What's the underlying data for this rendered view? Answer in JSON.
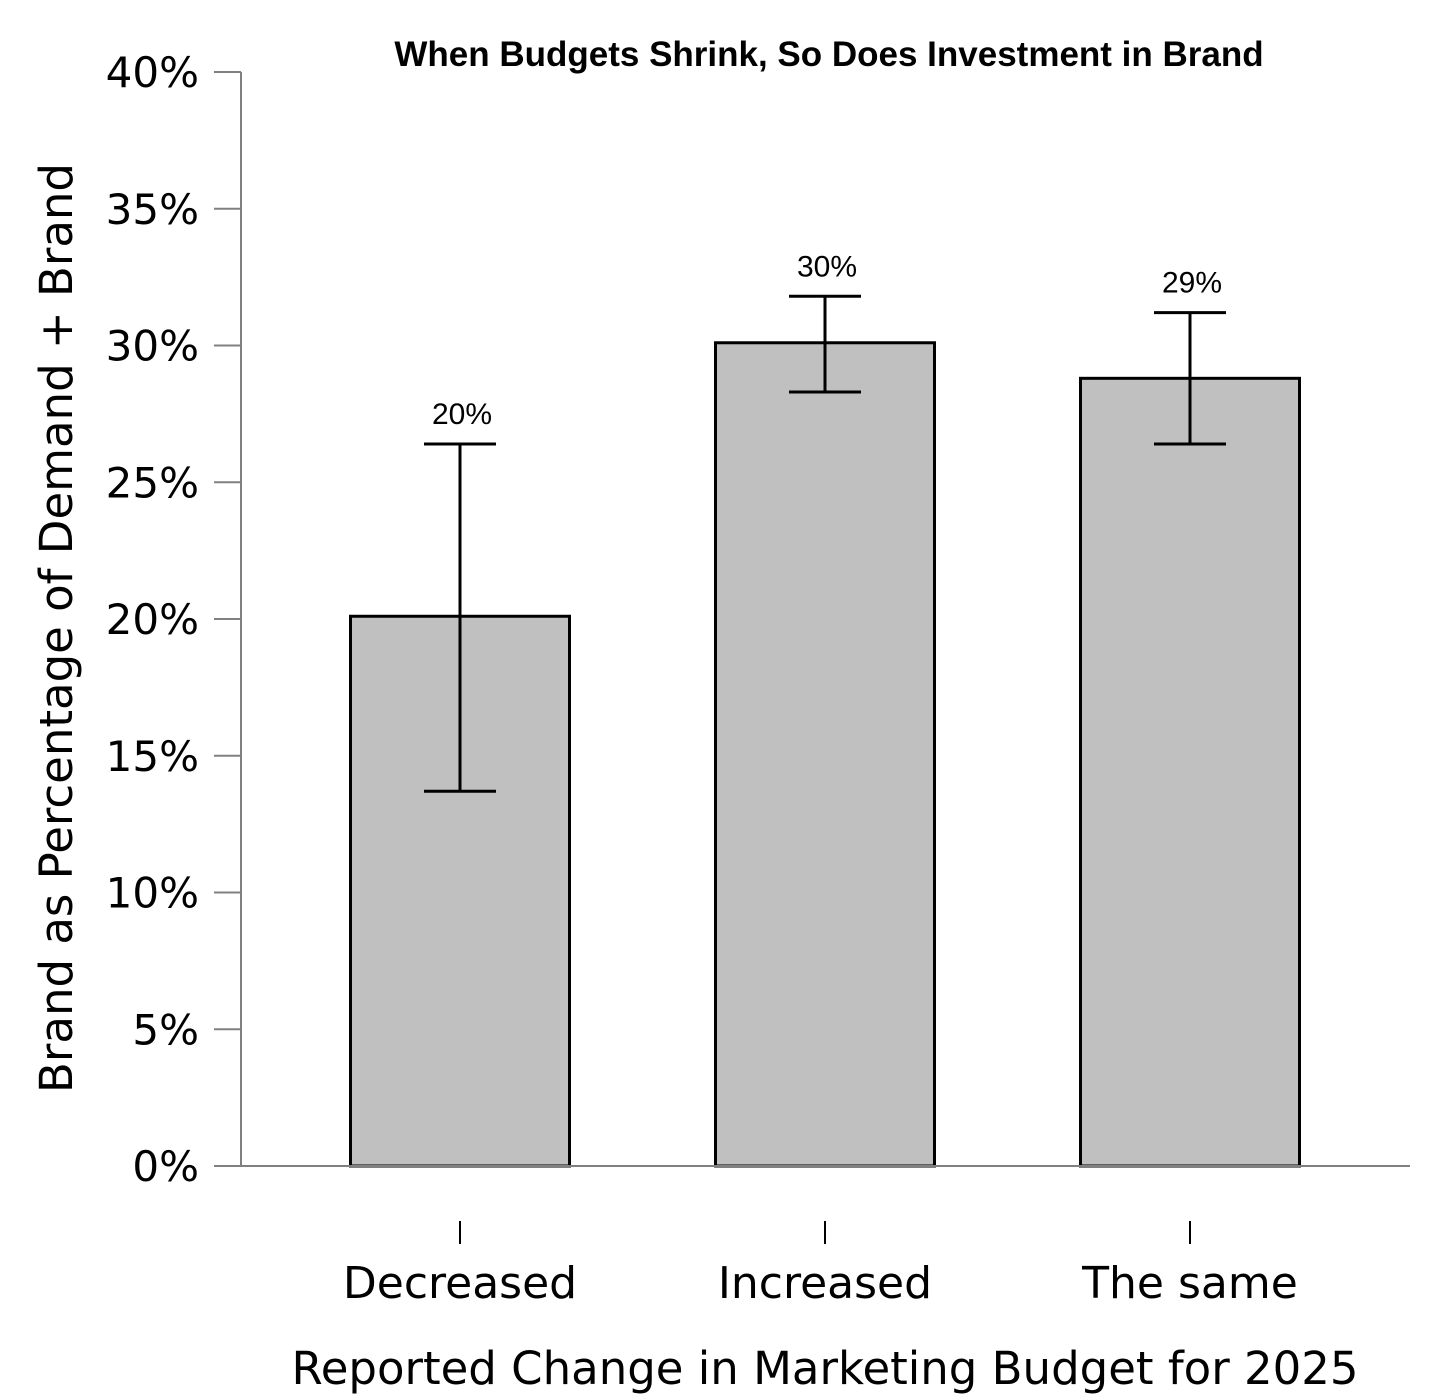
{
  "chart_data": {
    "type": "bar",
    "title": "When Budgets Shrink, So Does Investment in Brand",
    "xlabel": "Reported Change in Marketing Budget for 2025",
    "ylabel": "Brand as Percentage of Demand + Brand",
    "categories": [
      "Decreased",
      "Increased",
      "The same"
    ],
    "values": [
      20.1,
      30.1,
      28.8
    ],
    "data_labels": [
      "20%",
      "30%",
      "29%"
    ],
    "error_bars": [
      {
        "low": 13.7,
        "high": 26.4
      },
      {
        "low": 28.3,
        "high": 31.8
      },
      {
        "low": 26.4,
        "high": 31.2
      }
    ],
    "ylim": [
      0,
      40
    ],
    "yticks": [
      0,
      5,
      10,
      15,
      20,
      25,
      30,
      35,
      40
    ],
    "ytick_labels": [
      "0%",
      "5%",
      "10%",
      "15%",
      "20%",
      "25%",
      "30%",
      "35%",
      "40%"
    ],
    "grid": false,
    "legend": "none",
    "colors": {
      "bar_fill": "#c0c0c0",
      "bar_stroke": "#000000",
      "axis": "#808080",
      "error_bar": "#000000"
    }
  }
}
